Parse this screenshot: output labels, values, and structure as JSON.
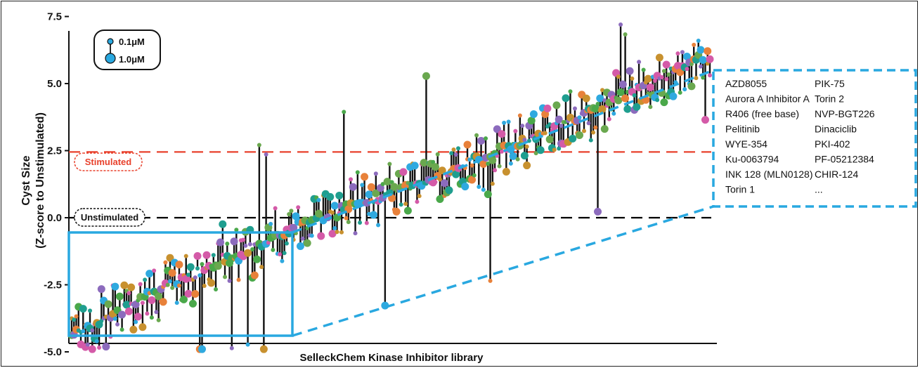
{
  "chart_data": {
    "type": "scatter",
    "title": "",
    "xlabel": "SelleckChem Kinase Inhibitor library",
    "ylabel_line1": "Cyst Size",
    "ylabel_line2": "(Z-score to Unstimulated)",
    "ylim": [
      -5.3,
      8.0
    ],
    "yticks": [
      "-5.0",
      "-2.5",
      "0.0",
      "2.5",
      "5.0",
      "7.5"
    ],
    "ytick_values": [
      -5.0,
      -2.5,
      0.0,
      2.5,
      5.0,
      7.5
    ],
    "legend": {
      "placement": "top-left",
      "items": [
        {
          "label": "0.1μM",
          "size": "small"
        },
        {
          "label": "1.0μM",
          "size": "large"
        }
      ]
    },
    "reference_lines": [
      {
        "label": "Stimulated",
        "y": 2.45,
        "color": "#e8412c",
        "style": "dashed"
      },
      {
        "label": "Unstimulated",
        "y": 0.0,
        "color": "#000000",
        "style": "dashed"
      }
    ],
    "n_compounds": 280,
    "trend_start": -4.4,
    "trend_end": 6.2,
    "dot_colors": [
      "#4aa84a",
      "#2fa9df",
      "#e8813a",
      "#8c6bbd",
      "#c8912f",
      "#d45aa8",
      "#6aa84f",
      "#1f9e8f"
    ],
    "highlight": {
      "region": "bottom-left compounds",
      "color": "#29a8e0",
      "inhibitors_col1": [
        "AZD8055",
        "Aurora A Inhibitor A",
        "R406 (free base)",
        "Pelitinib",
        "WYE-354",
        "Ku-0063794",
        "INK 128 (MLN0128)",
        "Torin 1"
      ],
      "inhibitors_col2": [
        "PIK-75",
        "Torin 2",
        "NVP-BGT226",
        "Dinaciclib",
        "PKI-402",
        "PF-05212384",
        "CHIR-124",
        "..."
      ]
    }
  }
}
